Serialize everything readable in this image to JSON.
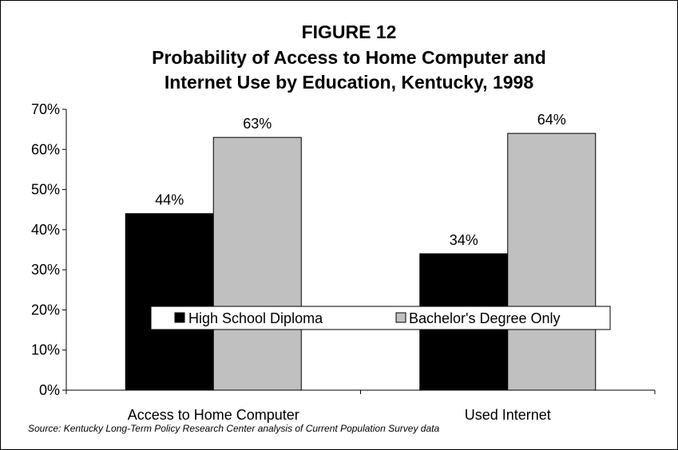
{
  "chart_data": {
    "type": "bar",
    "title_lines": [
      "FIGURE 12",
      "Probability of Access to Home Computer and",
      "Internet Use by Education, Kentucky, 1998"
    ],
    "categories": [
      "Access to Home Computer",
      "Used Internet"
    ],
    "series": [
      {
        "name": "High School Diploma",
        "values": [
          0.44,
          0.34
        ],
        "color": "#000000"
      },
      {
        "name": "Bachelor's Degree Only",
        "values": [
          0.63,
          0.64
        ],
        "color": "#c0c0c0"
      }
    ],
    "data_labels": [
      [
        "44%",
        "34%"
      ],
      [
        "63%",
        "64%"
      ]
    ],
    "ylim": [
      0,
      0.7
    ],
    "yticks": [
      "0%",
      "10%",
      "20%",
      "30%",
      "40%",
      "50%",
      "60%",
      "70%"
    ],
    "grid": false,
    "legend_placement": "center"
  },
  "source_note": "Source: Kentucky Long-Term Policy Research Center analysis of Current Population Survey data"
}
